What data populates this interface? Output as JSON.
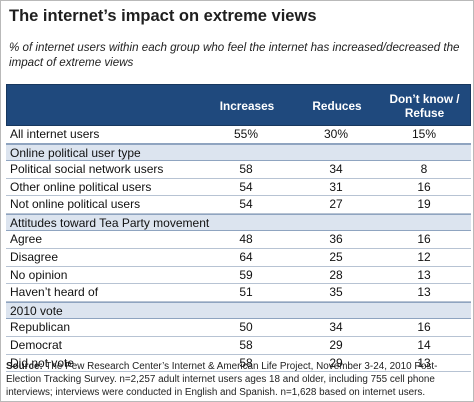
{
  "title": "The internet’s impact on extreme views",
  "subtitle": "% of internet users within each group who feel the internet has increased/decreased the impact of extreme views",
  "chart_data": {
    "type": "table",
    "columns": [
      "Increases",
      "Reduces",
      "Don’t know / Refuse"
    ],
    "rows": [
      {
        "kind": "data",
        "label": "All internet users",
        "values": [
          "55%",
          "30%",
          "15%"
        ]
      },
      {
        "kind": "section",
        "label": "Online political user type"
      },
      {
        "kind": "data",
        "label": "Political social network users",
        "values": [
          "58",
          "34",
          "8"
        ]
      },
      {
        "kind": "data",
        "label": "Other online political users",
        "values": [
          "54",
          "31",
          "16"
        ]
      },
      {
        "kind": "data",
        "label": "Not online political users",
        "values": [
          "54",
          "27",
          "19"
        ]
      },
      {
        "kind": "section",
        "label": "Attitudes toward Tea Party movement"
      },
      {
        "kind": "data",
        "label": "Agree",
        "values": [
          "48",
          "36",
          "16"
        ]
      },
      {
        "kind": "data",
        "label": "Disagree",
        "values": [
          "64",
          "25",
          "12"
        ]
      },
      {
        "kind": "data",
        "label": "No opinion",
        "values": [
          "59",
          "28",
          "13"
        ]
      },
      {
        "kind": "data",
        "label": "Haven’t heard of",
        "values": [
          "51",
          "35",
          "13"
        ]
      },
      {
        "kind": "section",
        "label": "2010 vote"
      },
      {
        "kind": "data",
        "label": "Republican",
        "values": [
          "50",
          "34",
          "16"
        ]
      },
      {
        "kind": "data",
        "label": "Democrat",
        "values": [
          "58",
          "29",
          "14"
        ]
      },
      {
        "kind": "data",
        "label": "Did not vote",
        "values": [
          "58",
          "29",
          "13"
        ]
      }
    ]
  },
  "source": {
    "label": "Source:",
    "text": "The Pew Research Center’s Internet & American Life Project, November 3-24, 2010 Post-Election Tracking Survey. n=2,257 adult internet users ages 18 and older, including 755 cell phone interviews; interviews were conducted in English and Spanish. n=1,628 based on internet users."
  }
}
